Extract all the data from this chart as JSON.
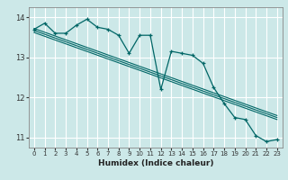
{
  "xlabel": "Humidex (Indice chaleur)",
  "bg_color": "#cce8e8",
  "grid_color": "#ffffff",
  "line_color": "#006666",
  "xlim": [
    -0.5,
    23.5
  ],
  "ylim": [
    10.75,
    14.25
  ],
  "yticks": [
    11,
    12,
    13,
    14
  ],
  "xticks": [
    0,
    1,
    2,
    3,
    4,
    5,
    6,
    7,
    8,
    9,
    10,
    11,
    12,
    13,
    14,
    15,
    16,
    17,
    18,
    19,
    20,
    21,
    22,
    23
  ],
  "series1_x": [
    0,
    1,
    2,
    3,
    4,
    5,
    6,
    7,
    8,
    9,
    10,
    11,
    12,
    13,
    14,
    15,
    16,
    17,
    18,
    19,
    20,
    21,
    22,
    23
  ],
  "series1_y": [
    13.7,
    13.85,
    13.6,
    13.6,
    13.8,
    13.95,
    13.75,
    13.7,
    13.55,
    13.1,
    13.55,
    13.55,
    12.2,
    13.15,
    13.1,
    13.05,
    12.85,
    12.25,
    11.85,
    11.5,
    11.45,
    11.05,
    10.9,
    10.95
  ],
  "trend1_x": [
    0,
    23
  ],
  "trend1_y": [
    13.72,
    11.55
  ],
  "trend2_x": [
    0,
    23
  ],
  "trend2_y": [
    13.67,
    11.5
  ],
  "trend3_x": [
    0,
    23
  ],
  "trend3_y": [
    13.62,
    11.45
  ]
}
